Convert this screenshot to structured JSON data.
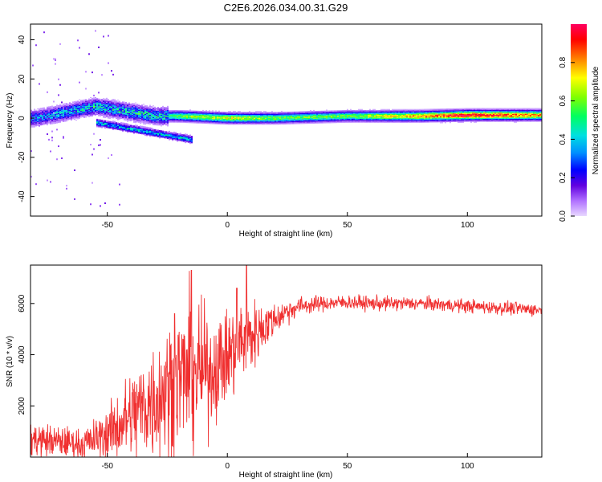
{
  "chart_data": [
    {
      "type": "heatmap",
      "title": "C2E6.2026.034.00.31.G29",
      "xlabel": "Height of straight line (km)",
      "ylabel": "Frequency (Hz)",
      "xlim": [
        -82,
        131
      ],
      "ylim": [
        -50,
        48
      ],
      "xticks": [
        -50,
        0,
        50,
        100
      ],
      "xtick_labels": [
        "-50",
        "0",
        "50",
        "100"
      ],
      "yticks": [
        -40,
        -20,
        0,
        20,
        40
      ],
      "ytick_labels": [
        "-40",
        "-20",
        "0",
        "20",
        "40"
      ],
      "colorbar": {
        "label": "Normalized spectral amplitude",
        "range": [
          0,
          1
        ],
        "ticks": [
          0.0,
          0.2,
          0.4,
          0.6,
          0.8
        ],
        "tick_labels": [
          "0.0",
          "0.2",
          "0.4",
          "0.6",
          "0.8"
        ],
        "colormap": [
          "#e8d8ff",
          "#b070ff",
          "#6000e0",
          "#0000ff",
          "#0090ff",
          "#00e0e0",
          "#00ff60",
          "#80ff00",
          "#ffff00",
          "#ff8000",
          "#ff0000",
          "#ff0060"
        ]
      },
      "ridge": {
        "description_x": [
          -80,
          -55,
          -40,
          -30,
          -20,
          0,
          20,
          50,
          80,
          100,
          131
        ],
        "center_freq": [
          0,
          6,
          3,
          1,
          1,
          0,
          0,
          1,
          1,
          1.5,
          1.5
        ],
        "amplitude": [
          0.35,
          0.45,
          0.45,
          0.45,
          0.6,
          0.7,
          0.6,
          0.6,
          0.8,
          0.95,
          0.8
        ]
      }
    },
    {
      "type": "line",
      "title": "",
      "xlabel": "Height of straight line (km)",
      "ylabel": "SNR (10 * v/v)",
      "xlim": [
        -82,
        131
      ],
      "ylim": [
        0,
        7500
      ],
      "xticks": [
        -50,
        0,
        50,
        100
      ],
      "xtick_labels": [
        "-50",
        "0",
        "50",
        "100"
      ],
      "yticks": [
        2000,
        4000,
        6000
      ],
      "ytick_labels": [
        "2000",
        "4000",
        "6000"
      ],
      "series": [
        {
          "name": "SNR",
          "color": "#f03030",
          "envelope_x": [
            -82,
            -70,
            -60,
            -50,
            -40,
            -30,
            -20,
            -15,
            -10,
            -5,
            0,
            5,
            10,
            15,
            20,
            25,
            30,
            40,
            50,
            60,
            70,
            80,
            90,
            100,
            110,
            120,
            131
          ],
          "envelope_y": [
            700,
            600,
            500,
            900,
            1600,
            2300,
            3100,
            3300,
            3300,
            3500,
            3900,
            4500,
            4700,
            5100,
            5400,
            5700,
            5900,
            6000,
            6050,
            6000,
            6000,
            6000,
            5950,
            5900,
            5850,
            5800,
            5750
          ],
          "noise_amplitude": [
            350,
            300,
            300,
            500,
            900,
            1200,
            1300,
            1500,
            1200,
            1000,
            900,
            900,
            700,
            500,
            300,
            250,
            180,
            150,
            140,
            140,
            140,
            130,
            130,
            130,
            130,
            130,
            130
          ],
          "spikes": [
            {
              "x": -15,
              "y": 7300
            },
            {
              "x": 8,
              "y": 7500
            },
            {
              "x": 4,
              "y": 6600
            },
            {
              "x": -22,
              "y": 5600
            }
          ]
        }
      ]
    }
  ]
}
